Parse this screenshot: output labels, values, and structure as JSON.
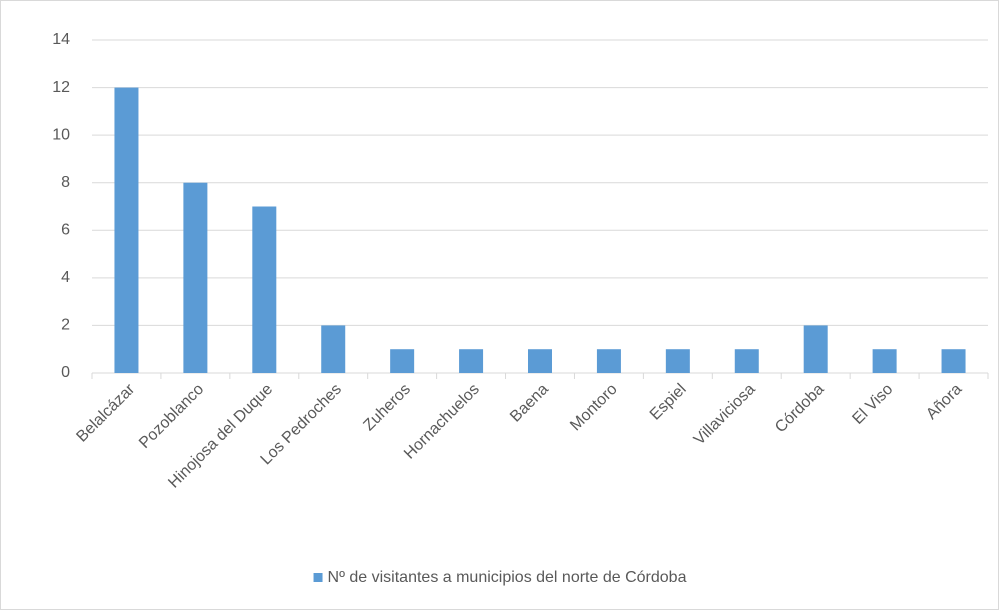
{
  "chart_data": {
    "type": "bar",
    "categories": [
      "Belalcázar",
      "Pozoblanco",
      "Hinojosa del Duque",
      "Los Pedroches",
      "Zuheros",
      "Hornachuelos",
      "Baena",
      "Montoro",
      "Espiel",
      "Villaviciosa",
      "Córdoba",
      "El Viso",
      "Añora"
    ],
    "series": [
      {
        "name": "Nº de visitantes a municipios del norte de Córdoba",
        "color": "#5b9bd5",
        "values": [
          12,
          8,
          7,
          2,
          1,
          1,
          1,
          1,
          1,
          1,
          2,
          1,
          1
        ]
      }
    ],
    "ylim": [
      0,
      14
    ],
    "yticks": [
      0,
      2,
      4,
      6,
      8,
      10,
      12,
      14
    ],
    "grid": true,
    "legend": "bottom"
  }
}
